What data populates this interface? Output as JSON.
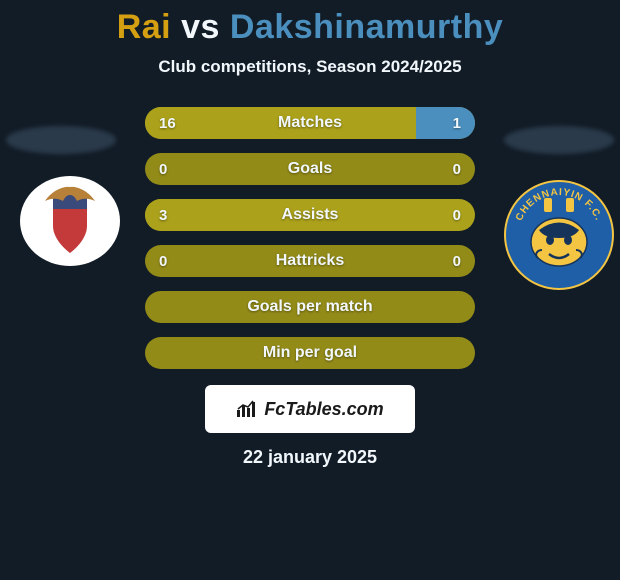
{
  "background_color": "#121c27",
  "title": {
    "player1": "Rai",
    "vs": "vs",
    "player2": "Dakshinamurthy",
    "player1_color": "#d59f12",
    "vs_color": "#f1f7fb",
    "player2_color": "#4b8fbf",
    "fontsize": 34
  },
  "subtitle": {
    "text": "Club competitions, Season 2024/2025",
    "color": "#f1f7fb",
    "fontsize": 17
  },
  "shadow_color": "#2a3a4a",
  "clubs": {
    "left": {
      "name": "atk-club-logo",
      "bg": "#ffffff",
      "shield_main": "#c43a3a",
      "shield_accent": "#3a4a7a",
      "eagle": "#b7813a"
    },
    "right": {
      "name": "chennaiyin-fc-logo",
      "bg": "#1e5fa8",
      "text": "CHENNAIYIN F.C.",
      "text_color": "#f4c542",
      "face": "#f4c542"
    }
  },
  "bars": {
    "track_color": "#aba11b",
    "track_dim_color": "#938b18",
    "fill_left_color": "#aba11b",
    "fill_right_color": "#4b8fbf",
    "label_color": "#f1f7fb",
    "value_color": "#f1f7fb",
    "neutral_color": "#aba11b",
    "rows": [
      {
        "label": "Matches",
        "left": "16",
        "right": "1",
        "left_pct": 82,
        "right_pct": 18
      },
      {
        "label": "Goals",
        "left": "0",
        "right": "0",
        "left_pct": 0,
        "right_pct": 0
      },
      {
        "label": "Assists",
        "left": "3",
        "right": "0",
        "left_pct": 82,
        "right_pct": 0
      },
      {
        "label": "Hattricks",
        "left": "0",
        "right": "0",
        "left_pct": 0,
        "right_pct": 0
      },
      {
        "label": "Goals per match",
        "left": "",
        "right": "",
        "left_pct": 0,
        "right_pct": 0
      },
      {
        "label": "Min per goal",
        "left": "",
        "right": "",
        "left_pct": 0,
        "right_pct": 0
      }
    ]
  },
  "branding": {
    "bg": "#ffffff",
    "text": "FcTables.com",
    "text_color": "#1a1a1a",
    "icon_color": "#1a1a1a"
  },
  "date": {
    "text": "22 january 2025",
    "color": "#f1f7fb"
  }
}
